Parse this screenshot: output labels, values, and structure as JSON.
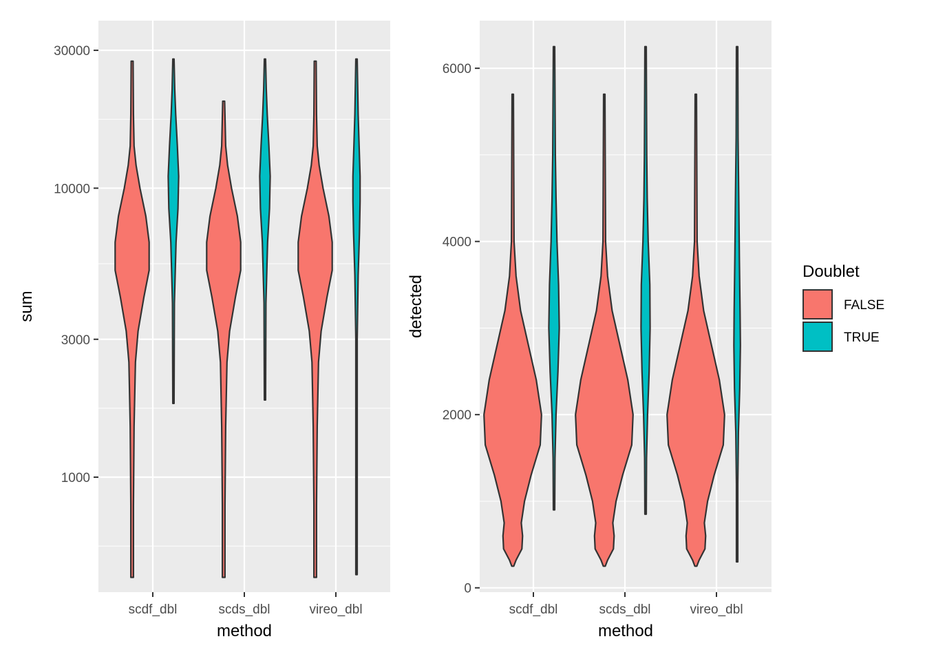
{
  "chart_data": [
    {
      "type": "violin",
      "ylabel": "sum",
      "xlabel": "method",
      "yscale": "log10",
      "ylim": [
        400,
        38000
      ],
      "yticks": [
        1000,
        3000,
        10000,
        30000
      ],
      "ytick_labels": [
        "1000",
        "3000",
        "10000",
        "30000"
      ],
      "categories": [
        "scdf_dbl",
        "scds_dbl",
        "vireo_dbl"
      ],
      "series": [
        {
          "name": "FALSE",
          "color": "#F8766D",
          "groups": [
            {
              "category": "scdf_dbl",
              "min": 450,
              "max": 27500,
              "profile": [
                [
                  450,
                  0.02
                ],
                [
                  800,
                  0.02
                ],
                [
                  1500,
                  0.03
                ],
                [
                  2500,
                  0.05
                ],
                [
                  3200,
                  0.09
                ],
                [
                  4200,
                  0.18
                ],
                [
                  5200,
                  0.26
                ],
                [
                  6500,
                  0.26
                ],
                [
                  8000,
                  0.21
                ],
                [
                  10000,
                  0.12
                ],
                [
                  12000,
                  0.06
                ],
                [
                  14000,
                  0.03
                ],
                [
                  18000,
                  0.02
                ],
                [
                  27500,
                  0.015
                ]
              ]
            },
            {
              "category": "scds_dbl",
              "min": 450,
              "max": 20000,
              "profile": [
                [
                  450,
                  0.02
                ],
                [
                  800,
                  0.02
                ],
                [
                  1500,
                  0.03
                ],
                [
                  2500,
                  0.05
                ],
                [
                  3200,
                  0.09
                ],
                [
                  4200,
                  0.18
                ],
                [
                  5200,
                  0.26
                ],
                [
                  6500,
                  0.26
                ],
                [
                  8000,
                  0.21
                ],
                [
                  10000,
                  0.12
                ],
                [
                  12000,
                  0.06
                ],
                [
                  14000,
                  0.03
                ],
                [
                  20000,
                  0.015
                ]
              ]
            },
            {
              "category": "vireo_dbl",
              "min": 450,
              "max": 27500,
              "profile": [
                [
                  450,
                  0.02
                ],
                [
                  800,
                  0.02
                ],
                [
                  1500,
                  0.03
                ],
                [
                  2500,
                  0.05
                ],
                [
                  3200,
                  0.09
                ],
                [
                  4200,
                  0.18
                ],
                [
                  5200,
                  0.26
                ],
                [
                  6500,
                  0.26
                ],
                [
                  8000,
                  0.21
                ],
                [
                  10000,
                  0.12
                ],
                [
                  12000,
                  0.06
                ],
                [
                  14000,
                  0.03
                ],
                [
                  18000,
                  0.02
                ],
                [
                  27500,
                  0.015
                ]
              ]
            }
          ]
        },
        {
          "name": "TRUE",
          "color": "#00BFC4",
          "groups": [
            {
              "category": "scdf_dbl",
              "min": 1800,
              "max": 28000,
              "profile": [
                [
                  1800,
                  0.01
                ],
                [
                  4000,
                  0.015
                ],
                [
                  6500,
                  0.04
                ],
                [
                  8500,
                  0.07
                ],
                [
                  11000,
                  0.08
                ],
                [
                  14000,
                  0.06
                ],
                [
                  18000,
                  0.035
                ],
                [
                  22000,
                  0.02
                ],
                [
                  28000,
                  0.01
                ]
              ]
            },
            {
              "category": "scds_dbl",
              "min": 1850,
              "max": 28000,
              "profile": [
                [
                  1850,
                  0.01
                ],
                [
                  4000,
                  0.015
                ],
                [
                  6500,
                  0.04
                ],
                [
                  8500,
                  0.07
                ],
                [
                  11000,
                  0.08
                ],
                [
                  14000,
                  0.06
                ],
                [
                  18000,
                  0.035
                ],
                [
                  22000,
                  0.02
                ],
                [
                  28000,
                  0.01
                ]
              ]
            },
            {
              "category": "vireo_dbl",
              "min": 460,
              "max": 28000,
              "profile": [
                [
                  460,
                  0.01
                ],
                [
                  3000,
                  0.01
                ],
                [
                  5000,
                  0.025
                ],
                [
                  7000,
                  0.045
                ],
                [
                  9000,
                  0.055
                ],
                [
                  11000,
                  0.055
                ],
                [
                  14000,
                  0.04
                ],
                [
                  18000,
                  0.025
                ],
                [
                  28000,
                  0.01
                ]
              ]
            }
          ]
        }
      ]
    },
    {
      "type": "violin",
      "ylabel": "detected",
      "xlabel": "method",
      "yscale": "linear",
      "ylim": [
        -50,
        6550
      ],
      "yticks": [
        0,
        2000,
        4000,
        6000
      ],
      "ytick_labels": [
        "0",
        "2000",
        "4000",
        "6000"
      ],
      "categories": [
        "scdf_dbl",
        "scds_dbl",
        "vireo_dbl"
      ],
      "series": [
        {
          "name": "FALSE",
          "color": "#F8766D",
          "groups": [
            {
              "category": "scdf_dbl",
              "min": 250,
              "max": 5700,
              "profile": [
                [
                  250,
                  0.015
                ],
                [
                  320,
                  0.05
                ],
                [
                  450,
                  0.14
                ],
                [
                  600,
                  0.15
                ],
                [
                  750,
                  0.13
                ],
                [
                  1000,
                  0.18
                ],
                [
                  1300,
                  0.28
                ],
                [
                  1650,
                  0.42
                ],
                [
                  2000,
                  0.44
                ],
                [
                  2400,
                  0.36
                ],
                [
                  2800,
                  0.24
                ],
                [
                  3200,
                  0.12
                ],
                [
                  3600,
                  0.05
                ],
                [
                  4000,
                  0.02
                ],
                [
                  5700,
                  0.01
                ]
              ]
            },
            {
              "category": "scds_dbl",
              "min": 250,
              "max": 5700,
              "profile": [
                [
                  250,
                  0.015
                ],
                [
                  320,
                  0.05
                ],
                [
                  450,
                  0.14
                ],
                [
                  600,
                  0.15
                ],
                [
                  750,
                  0.13
                ],
                [
                  1000,
                  0.18
                ],
                [
                  1300,
                  0.28
                ],
                [
                  1650,
                  0.42
                ],
                [
                  2000,
                  0.44
                ],
                [
                  2400,
                  0.36
                ],
                [
                  2800,
                  0.24
                ],
                [
                  3200,
                  0.12
                ],
                [
                  3600,
                  0.05
                ],
                [
                  4000,
                  0.02
                ],
                [
                  5700,
                  0.01
                ]
              ]
            },
            {
              "category": "vireo_dbl",
              "min": 250,
              "max": 5700,
              "profile": [
                [
                  250,
                  0.015
                ],
                [
                  320,
                  0.05
                ],
                [
                  450,
                  0.14
                ],
                [
                  600,
                  0.15
                ],
                [
                  750,
                  0.13
                ],
                [
                  1000,
                  0.18
                ],
                [
                  1300,
                  0.28
                ],
                [
                  1650,
                  0.42
                ],
                [
                  2000,
                  0.44
                ],
                [
                  2400,
                  0.36
                ],
                [
                  2800,
                  0.24
                ],
                [
                  3200,
                  0.12
                ],
                [
                  3600,
                  0.05
                ],
                [
                  4000,
                  0.02
                ],
                [
                  5700,
                  0.01
                ]
              ]
            }
          ]
        },
        {
          "name": "TRUE",
          "color": "#00BFC4",
          "groups": [
            {
              "category": "scdf_dbl",
              "min": 900,
              "max": 6250,
              "profile": [
                [
                  900,
                  0.01
                ],
                [
                  1500,
                  0.015
                ],
                [
                  2000,
                  0.03
                ],
                [
                  2500,
                  0.06
                ],
                [
                  3000,
                  0.08
                ],
                [
                  3500,
                  0.07
                ],
                [
                  4000,
                  0.045
                ],
                [
                  4500,
                  0.03
                ],
                [
                  5000,
                  0.02
                ],
                [
                  6250,
                  0.01
                ]
              ]
            },
            {
              "category": "scds_dbl",
              "min": 850,
              "max": 6250,
              "profile": [
                [
                  850,
                  0.01
                ],
                [
                  1500,
                  0.015
                ],
                [
                  2000,
                  0.03
                ],
                [
                  2500,
                  0.055
                ],
                [
                  3000,
                  0.07
                ],
                [
                  3500,
                  0.065
                ],
                [
                  4000,
                  0.04
                ],
                [
                  4500,
                  0.025
                ],
                [
                  5000,
                  0.018
                ],
                [
                  6250,
                  0.01
                ]
              ]
            },
            {
              "category": "vireo_dbl",
              "min": 300,
              "max": 6250,
              "profile": [
                [
                  300,
                  0.01
                ],
                [
                  1200,
                  0.01
                ],
                [
                  1800,
                  0.02
                ],
                [
                  2300,
                  0.04
                ],
                [
                  2800,
                  0.05
                ],
                [
                  3200,
                  0.045
                ],
                [
                  3800,
                  0.035
                ],
                [
                  4500,
                  0.025
                ],
                [
                  5200,
                  0.015
                ],
                [
                  6250,
                  0.01
                ]
              ]
            }
          ]
        }
      ]
    }
  ],
  "legend": {
    "title": "Doublet",
    "items": [
      {
        "label": "FALSE",
        "color": "#F8766D"
      },
      {
        "label": "TRUE",
        "color": "#00BFC4"
      }
    ]
  },
  "style": {
    "panel_bg": "#EBEBEB",
    "grid_major": "#FFFFFF",
    "outline": "#333333"
  }
}
